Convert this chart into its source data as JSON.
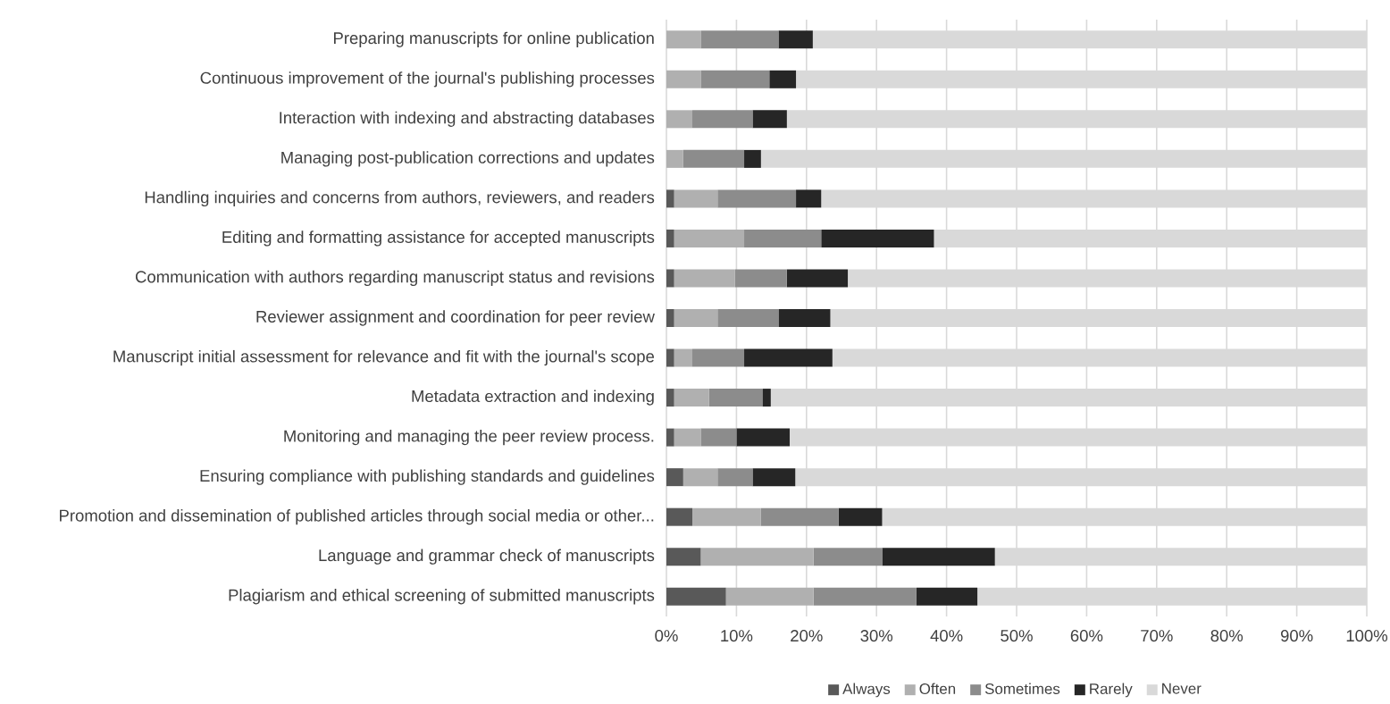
{
  "chart_data": {
    "type": "bar",
    "orientation": "horizontal",
    "stacked": true,
    "categories": [
      "Preparing manuscripts for online publication",
      "Continuous improvement of the journal's publishing processes",
      "Interaction with indexing and abstracting databases",
      "Managing post-publication corrections and updates",
      "Handling inquiries and concerns from authors, reviewers, and readers",
      "Editing and formatting assistance for accepted manuscripts",
      "Communication with authors regarding manuscript status and revisions",
      "Reviewer assignment and coordination for peer review",
      "Manuscript initial assessment for relevance and fit with the journal's scope",
      "Metadata extraction and indexing",
      "Monitoring and managing the peer review process.",
      "Ensuring compliance with publishing standards and guidelines",
      "Promotion and dissemination of published articles through social media or other...",
      "Language and grammar check of manuscripts",
      "Plagiarism and ethical screening of submitted manuscripts"
    ],
    "series": [
      {
        "name": "Always",
        "color": "#595959",
        "values": [
          0,
          0,
          0,
          0,
          1.1,
          1.1,
          1.1,
          1.1,
          1.1,
          1.1,
          1.1,
          2.4,
          3.7,
          4.9,
          8.5
        ]
      },
      {
        "name": "Often",
        "color": "#b0b0b0",
        "values": [
          4.9,
          4.9,
          3.7,
          2.4,
          6.2,
          10,
          8.7,
          6.2,
          2.6,
          5,
          3.8,
          4.9,
          9.8,
          16.1,
          12.5
        ]
      },
      {
        "name": "Sometimes",
        "color": "#8c8c8c",
        "values": [
          11.1,
          9.8,
          8.6,
          8.7,
          11.2,
          11,
          7.4,
          8.7,
          7.4,
          7.6,
          5.1,
          5,
          11.1,
          9.8,
          14.7
        ]
      },
      {
        "name": "Rarely",
        "color": "#262626",
        "values": [
          4.9,
          3.8,
          4.9,
          2.4,
          3.6,
          16.1,
          8.7,
          7.4,
          12.6,
          1.2,
          7.6,
          6.1,
          6.2,
          16.1,
          8.7
        ]
      },
      {
        "name": "Never",
        "color": "#d9d9d9",
        "values": [
          79.1,
          81.5,
          82.8,
          86.5,
          77.9,
          61.8,
          74.1,
          76.6,
          76.3,
          85.1,
          82.4,
          81.6,
          69.2,
          53.1,
          55.6
        ]
      }
    ],
    "xlim": [
      0,
      100
    ],
    "xticks": [
      {
        "value": 0,
        "label": "0%"
      },
      {
        "value": 10,
        "label": "10%"
      },
      {
        "value": 20,
        "label": "20%"
      },
      {
        "value": 30,
        "label": "30%"
      },
      {
        "value": 40,
        "label": "40%"
      },
      {
        "value": 50,
        "label": "50%"
      },
      {
        "value": 60,
        "label": "60%"
      },
      {
        "value": 70,
        "label": "70%"
      },
      {
        "value": 80,
        "label": "80%"
      },
      {
        "value": 90,
        "label": "90%"
      },
      {
        "value": 100,
        "label": "100%"
      }
    ],
    "grid": "x",
    "legend": "bottom"
  }
}
